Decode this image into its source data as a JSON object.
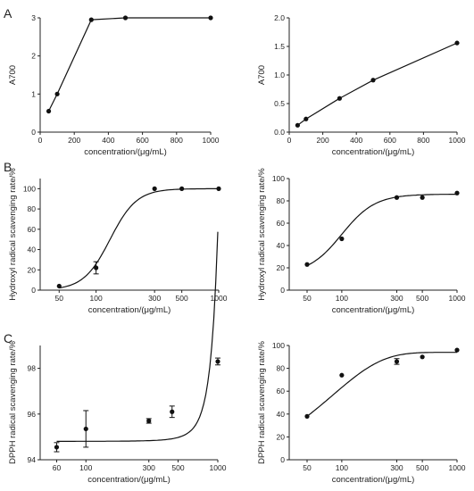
{
  "panel_letters": [
    "A",
    "B",
    "C"
  ],
  "chart_data": [
    {
      "type": "line",
      "panel": "A",
      "xlabel": "concentration/(μg/mL)",
      "ylabel": "A700",
      "xscale": "linear",
      "xlim": [
        0,
        1000
      ],
      "ylim": [
        0,
        3
      ],
      "xticks": [
        0,
        200,
        400,
        600,
        800,
        1000
      ],
      "yticks": [
        0,
        1,
        2,
        3
      ],
      "fit": "connect",
      "points": [
        {
          "x": 50,
          "y": 0.55
        },
        {
          "x": 100,
          "y": 1.0
        },
        {
          "x": 300,
          "y": 2.95
        },
        {
          "x": 500,
          "y": 3.0
        },
        {
          "x": 1000,
          "y": 3.0
        }
      ]
    },
    {
      "type": "line",
      "panel": "A",
      "xlabel": "concentration/(μg/mL)",
      "ylabel": "A700",
      "xscale": "linear",
      "xlim": [
        0,
        1000
      ],
      "ylim": [
        0,
        2.0
      ],
      "xticks": [
        0,
        200,
        400,
        600,
        800,
        1000
      ],
      "yticks": [
        0,
        0.5,
        1.0,
        1.5,
        2.0
      ],
      "ytick_labels": [
        "0.0",
        "0.5",
        "1.0",
        "1.5",
        "2.0"
      ],
      "fit": "connect",
      "points": [
        {
          "x": 50,
          "y": 0.12
        },
        {
          "x": 100,
          "y": 0.23
        },
        {
          "x": 300,
          "y": 0.59
        },
        {
          "x": 500,
          "y": 0.91
        },
        {
          "x": 1000,
          "y": 1.56
        }
      ]
    },
    {
      "type": "scatter",
      "panel": "B",
      "xlabel": "concentration/(μg/mL)",
      "ylabel": "Hydroxyl radical scavenging rate/%",
      "xscale": "log",
      "xlim": [
        35,
        1000
      ],
      "ylim": [
        0,
        110
      ],
      "xticks": [
        50,
        100,
        300,
        500,
        1000
      ],
      "yticks": [
        0,
        20,
        40,
        60,
        80,
        100
      ],
      "fit": "sigmoid",
      "fit_params": {
        "bottom": 0,
        "top": 100,
        "ec50": 130,
        "hill": 4
      },
      "points": [
        {
          "x": 50,
          "y": 4,
          "err": 0
        },
        {
          "x": 100,
          "y": 22,
          "err": 6
        },
        {
          "x": 300,
          "y": 100,
          "err": 0
        },
        {
          "x": 500,
          "y": 100,
          "err": 0
        },
        {
          "x": 1000,
          "y": 100,
          "err": 0
        }
      ]
    },
    {
      "type": "scatter",
      "panel": "B",
      "xlabel": "concentration/(μg/mL)",
      "ylabel": "Hydroxyl radical scavenging rate/%",
      "xscale": "log",
      "xlim": [
        35,
        1000
      ],
      "ylim": [
        0,
        100
      ],
      "xticks": [
        50,
        100,
        300,
        500,
        1000
      ],
      "yticks": [
        0,
        20,
        40,
        60,
        80,
        100
      ],
      "fit": "sigmoid",
      "fit_params": {
        "bottom": 14,
        "top": 86,
        "ec50": 100,
        "hill": 3
      },
      "points": [
        {
          "x": 50,
          "y": 23,
          "err": 0
        },
        {
          "x": 100,
          "y": 46,
          "err": 0
        },
        {
          "x": 300,
          "y": 83,
          "err": 0
        },
        {
          "x": 500,
          "y": 83,
          "err": 0
        },
        {
          "x": 1000,
          "y": 87,
          "err": 0
        }
      ]
    },
    {
      "type": "scatter",
      "panel": "C",
      "xlabel": "concentration/(μg/mL)",
      "ylabel": "DPPH radical scavenging rate/%",
      "xscale": "log",
      "xlim": [
        45,
        1000
      ],
      "ylim": [
        94,
        99
      ],
      "xticks": [
        60,
        100,
        300,
        500,
        1000
      ],
      "yticks": [
        94,
        96,
        98
      ],
      "fit": "exp_rise",
      "fit_params": {
        "base": 94.8,
        "amp": 0.0034,
        "k": 0.0079
      },
      "points": [
        {
          "x": 60,
          "y": 94.55,
          "err": 0.2
        },
        {
          "x": 100,
          "y": 95.35,
          "err": 0.8
        },
        {
          "x": 300,
          "y": 95.7,
          "err": 0.1
        },
        {
          "x": 450,
          "y": 96.1,
          "err": 0.25
        },
        {
          "x": 1000,
          "y": 98.3,
          "err": 0.15
        }
      ]
    },
    {
      "type": "scatter",
      "panel": "C",
      "xlabel": "concentration/(μg/mL)",
      "ylabel": "DPPH radical scavenging rate/%",
      "xscale": "log",
      "xlim": [
        35,
        1000
      ],
      "ylim": [
        0,
        100
      ],
      "xticks": [
        50,
        100,
        300,
        500,
        1000
      ],
      "yticks": [
        0,
        20,
        40,
        60,
        80,
        100
      ],
      "fit": "exp_plateau",
      "fit_params": {
        "top": 94,
        "start": 38,
        "x0": 50,
        "k": 0.012
      },
      "points": [
        {
          "x": 50,
          "y": 38,
          "err": 0
        },
        {
          "x": 100,
          "y": 74,
          "err": 0
        },
        {
          "x": 300,
          "y": 86,
          "err": 2.5
        },
        {
          "x": 500,
          "y": 90,
          "err": 0
        },
        {
          "x": 1000,
          "y": 96,
          "err": 0
        }
      ]
    }
  ]
}
